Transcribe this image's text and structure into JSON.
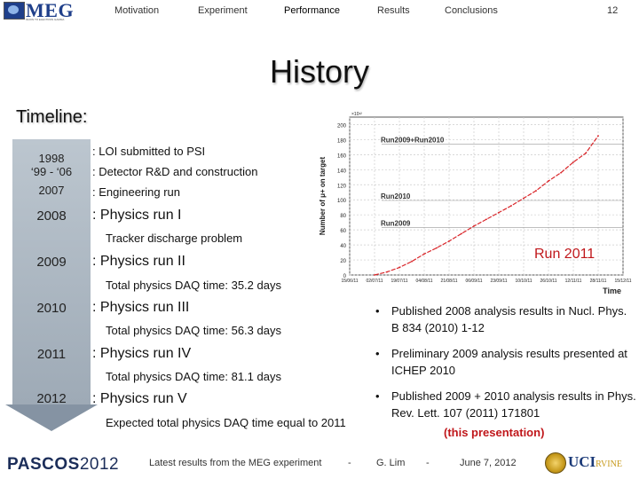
{
  "header": {
    "logo": "MEG",
    "logo_subtitle": "MUON TO ELECTRON GAMMA",
    "nav": [
      "Motivation",
      "Experiment",
      "Performance",
      "Results",
      "Conclusions"
    ],
    "page_number": "12"
  },
  "title": "History",
  "timeline": {
    "heading": "Timeline:",
    "entries": [
      {
        "year": "1998",
        "text": ": LOI submitted to PSI"
      },
      {
        "year": "‘99 - ‘06",
        "text": ": Detector R&D and construction"
      },
      {
        "year": "2007",
        "text": ": Engineering run"
      },
      {
        "year": "2008",
        "text": ": Physics run I",
        "note": "Tracker discharge problem"
      },
      {
        "year": "2009",
        "text": ": Physics run II",
        "note": "Total physics DAQ time: 35.2 days"
      },
      {
        "year": "2010",
        "text": ": Physics run III",
        "note": "Total physics DAQ time: 56.3 days"
      },
      {
        "year": "2011",
        "text": ": Physics run IV",
        "note": "Total physics DAQ time: 81.1 days"
      },
      {
        "year": "2012",
        "text": ": Physics run V",
        "note": "Expected total physics DAQ time equal to 2011"
      }
    ]
  },
  "chart_data": {
    "type": "line",
    "ylabel": "Number of μ+ on target",
    "y_exponent": "×10¹²",
    "xlabel": "Time",
    "ylim": [
      0,
      210
    ],
    "yticks": [
      0,
      20,
      40,
      60,
      80,
      100,
      120,
      140,
      160,
      180,
      200
    ],
    "xticks": [
      "15/06/11",
      "02/07/11",
      "19/07/11",
      "04/08/11",
      "21/08/11",
      "06/09/11",
      "23/09/11",
      "10/10/11",
      "26/10/11",
      "12/11/11",
      "28/11/11",
      "15/12/11"
    ],
    "annotations": [
      "Run2009+Run2010",
      "Run2010",
      "Run2009"
    ],
    "reference_levels": [
      {
        "label": "Run2009+Run2010",
        "y": 180
      },
      {
        "label": "Run2010",
        "y": 105
      },
      {
        "label": "Run2009",
        "y": 69
      }
    ],
    "series": [
      {
        "x": [
          1.0,
          1.5,
          2.0,
          2.5,
          3.0,
          3.5,
          4.0,
          4.5,
          5.0,
          5.5,
          6.0,
          6.5,
          7.0,
          7.5,
          8.0,
          8.5,
          9.0,
          9.5,
          10.0
        ],
        "y": [
          0,
          4,
          10,
          18,
          28,
          36,
          45,
          55,
          65,
          74,
          83,
          92,
          102,
          112,
          125,
          136,
          150,
          162,
          185
        ]
      }
    ],
    "grid": true,
    "series_color": "#d9262a"
  },
  "chart_label": "Run 2011",
  "bullets": [
    {
      "text": "Published 2008 analysis results in  Nucl. Phys. B 834 (2010) 1-12"
    },
    {
      "text": "Preliminary 2009 analysis results presented at ICHEP 2010"
    },
    {
      "text": "Published 2009 + 2010 analysis results in Phys. Rev. Lett. 107 (2011) 171801"
    }
  ],
  "this_presentation": "(this presentation)",
  "footer": {
    "conference": "PASCOS",
    "conference_year": "2012",
    "talk": "Latest results from the MEG experiment",
    "sep1": "-",
    "speaker": "G. Lim",
    "sep2": "-",
    "date": "June 7, 2012",
    "affiliation": "UCI",
    "affiliation_sub": "RVINE"
  }
}
